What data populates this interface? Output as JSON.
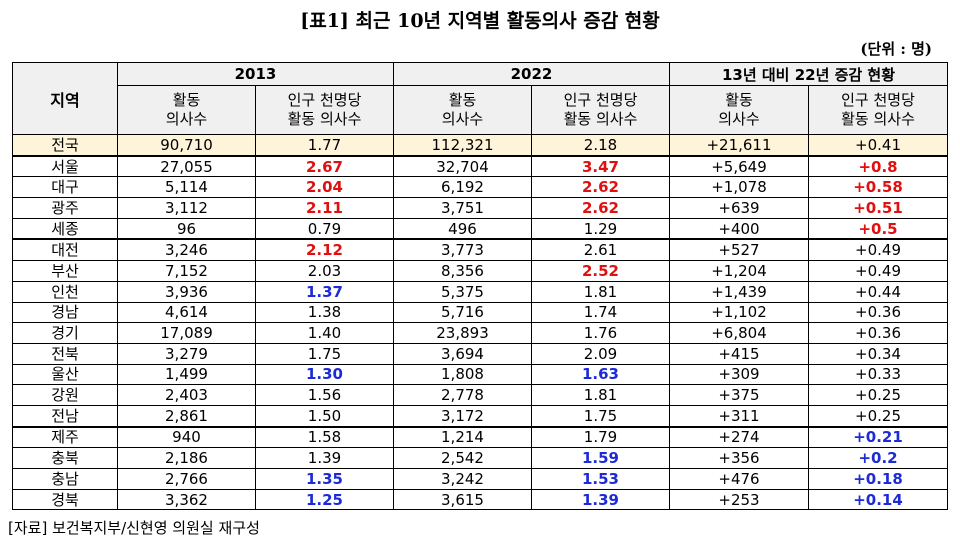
{
  "title": "[표1] 최근 10년 지역별 활동의사 증감 현황",
  "unit": "(단위 : 명)",
  "headers": {
    "region": "지역",
    "year1": "2013",
    "year2": "2022",
    "change": "13년 대비 22년 증감 현황",
    "active_line1": "활동",
    "active_line2": "의사수",
    "per1000_line1": "인구 천명당",
    "per1000_line2": "활동 의사수"
  },
  "rows": [
    {
      "region": "전국",
      "a13": "90,710",
      "p13": "1.77",
      "a22": "112,321",
      "p22": "2.18",
      "da": "+21,611",
      "dp": "+0.41",
      "p13c": "",
      "p22c": "",
      "dpc": ""
    },
    {
      "region": "서울",
      "a13": "27,055",
      "p13": "2.67",
      "a22": "32,704",
      "p22": "3.47",
      "da": "+5,649",
      "dp": "+0.8",
      "p13c": "red",
      "p22c": "red",
      "dpc": "red"
    },
    {
      "region": "대구",
      "a13": "5,114",
      "p13": "2.04",
      "a22": "6,192",
      "p22": "2.62",
      "da": "+1,078",
      "dp": "+0.58",
      "p13c": "red",
      "p22c": "red",
      "dpc": "red"
    },
    {
      "region": "광주",
      "a13": "3,112",
      "p13": "2.11",
      "a22": "3,751",
      "p22": "2.62",
      "da": "+639",
      "dp": "+0.51",
      "p13c": "red",
      "p22c": "red",
      "dpc": "red"
    },
    {
      "region": "세종",
      "a13": "96",
      "p13": "0.79",
      "a22": "496",
      "p22": "1.29",
      "da": "+400",
      "dp": "+0.5",
      "p13c": "",
      "p22c": "",
      "dpc": "red"
    },
    {
      "region": "대전",
      "a13": "3,246",
      "p13": "2.12",
      "a22": "3,773",
      "p22": "2.61",
      "da": "+527",
      "dp": "+0.49",
      "p13c": "red",
      "p22c": "",
      "dpc": ""
    },
    {
      "region": "부산",
      "a13": "7,152",
      "p13": "2.03",
      "a22": "8,356",
      "p22": "2.52",
      "da": "+1,204",
      "dp": "+0.49",
      "p13c": "",
      "p22c": "red",
      "dpc": ""
    },
    {
      "region": "인천",
      "a13": "3,936",
      "p13": "1.37",
      "a22": "5,375",
      "p22": "1.81",
      "da": "+1,439",
      "dp": "+0.44",
      "p13c": "blue",
      "p22c": "",
      "dpc": ""
    },
    {
      "region": "경남",
      "a13": "4,614",
      "p13": "1.38",
      "a22": "5,716",
      "p22": "1.74",
      "da": "+1,102",
      "dp": "+0.36",
      "p13c": "",
      "p22c": "",
      "dpc": ""
    },
    {
      "region": "경기",
      "a13": "17,089",
      "p13": "1.40",
      "a22": "23,893",
      "p22": "1.76",
      "da": "+6,804",
      "dp": "+0.36",
      "p13c": "",
      "p22c": "",
      "dpc": ""
    },
    {
      "region": "전북",
      "a13": "3,279",
      "p13": "1.75",
      "a22": "3,694",
      "p22": "2.09",
      "da": "+415",
      "dp": "+0.34",
      "p13c": "",
      "p22c": "",
      "dpc": ""
    },
    {
      "region": "울산",
      "a13": "1,499",
      "p13": "1.30",
      "a22": "1,808",
      "p22": "1.63",
      "da": "+309",
      "dp": "+0.33",
      "p13c": "blue",
      "p22c": "blue",
      "dpc": ""
    },
    {
      "region": "강원",
      "a13": "2,403",
      "p13": "1.56",
      "a22": "2,778",
      "p22": "1.81",
      "da": "+375",
      "dp": "+0.25",
      "p13c": "",
      "p22c": "",
      "dpc": ""
    },
    {
      "region": "전남",
      "a13": "2,861",
      "p13": "1.50",
      "a22": "3,172",
      "p22": "1.75",
      "da": "+311",
      "dp": "+0.25",
      "p13c": "",
      "p22c": "",
      "dpc": ""
    },
    {
      "region": "제주",
      "a13": "940",
      "p13": "1.58",
      "a22": "1,214",
      "p22": "1.79",
      "da": "+274",
      "dp": "+0.21",
      "p13c": "",
      "p22c": "",
      "dpc": "blue"
    },
    {
      "region": "충북",
      "a13": "2,186",
      "p13": "1.39",
      "a22": "2,542",
      "p22": "1.59",
      "da": "+356",
      "dp": "+0.2",
      "p13c": "",
      "p22c": "blue",
      "dpc": "blue"
    },
    {
      "region": "충남",
      "a13": "2,766",
      "p13": "1.35",
      "a22": "3,242",
      "p22": "1.53",
      "da": "+476",
      "dp": "+0.18",
      "p13c": "blue",
      "p22c": "blue",
      "dpc": "blue"
    },
    {
      "region": "경북",
      "a13": "3,362",
      "p13": "1.25",
      "a22": "3,615",
      "p22": "1.39",
      "da": "+253",
      "dp": "+0.14",
      "p13c": "blue",
      "p22c": "blue",
      "dpc": "blue"
    }
  ],
  "colors": {
    "high": "#e01010",
    "low": "#1d2bd6",
    "total_row_bg": "#fdf4d9",
    "header_bg": "#f0f0f0"
  },
  "source": "[자료] 보건복지부/신현영 의원실 재구성"
}
